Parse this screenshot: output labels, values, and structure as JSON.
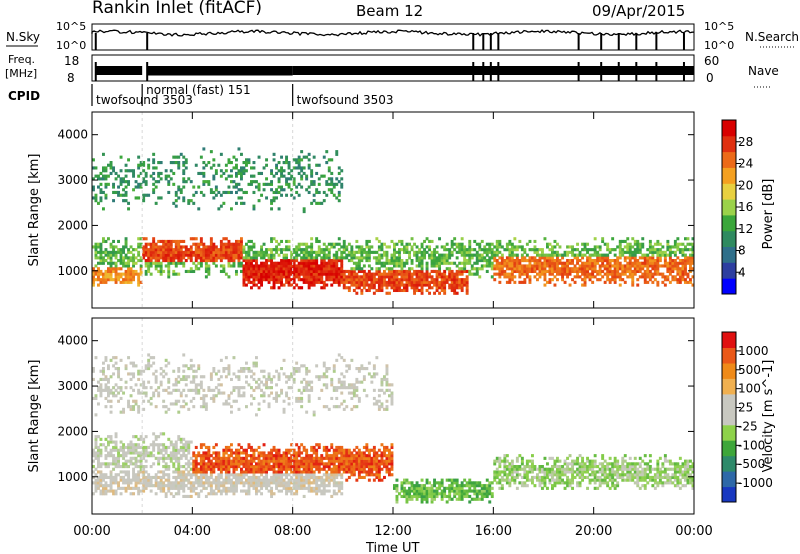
{
  "header": {
    "station": "Rankin Inlet (fitACF)",
    "beam": "Beam 12",
    "date": "09/Apr/2015"
  },
  "status_panels": {
    "nsky_label": "N.Sky",
    "nsky_ticks": [
      "10^5",
      "10^0"
    ],
    "nsearch_label": "N.Search",
    "nsearch_ticks": [
      "10^5",
      "10^0"
    ],
    "freq_label": "Freq.",
    "freq_unit": "[MHz]",
    "freq_ticks": [
      "18",
      "8"
    ],
    "nave_label": "Nave",
    "nave_ticks": [
      "60",
      "0"
    ],
    "cpid_label": "CPID",
    "cpid_segments": [
      {
        "name": "twofsound 3503",
        "start": 0.0,
        "end": 2.0
      },
      {
        "name": "normal (fast) 151",
        "start": 2.0,
        "end": 8.0
      },
      {
        "name": "twofsound 3503",
        "start": 8.0,
        "end": 24.0
      }
    ]
  },
  "axes": {
    "ylabel": "Slant Range [km]",
    "xlabel": "Time UT",
    "y_ticks": [
      "4000",
      "3000",
      "2000",
      "1000"
    ],
    "x_ticks": [
      "00:00",
      "04:00",
      "08:00",
      "12:00",
      "16:00",
      "20:00",
      "00:00"
    ]
  },
  "colorbars": {
    "power": {
      "label": "Power [dB]",
      "ticks": [
        "28",
        "24",
        "20",
        "16",
        "12",
        "8",
        "4"
      ],
      "colors": [
        "#0000ff",
        "#2d3ea0",
        "#2f6f8a",
        "#2f8a60",
        "#3aa63a",
        "#9bd24a",
        "#e8d040",
        "#f4a020",
        "#ec6a18",
        "#e03010",
        "#d80000"
      ]
    },
    "velocity": {
      "label": "Velocity [m s^-1]",
      "ticks": [
        "1000",
        "500",
        "100",
        "25",
        "-25",
        "-100",
        "-500",
        "-1000"
      ],
      "colors": [
        "#1838c0",
        "#2e68a8",
        "#2e8a6a",
        "#3ea63a",
        "#8ed24a",
        "#c8c8c0",
        "#c8c8c0",
        "#f0b050",
        "#ef8a18",
        "#ea5818",
        "#e01010"
      ]
    }
  },
  "chart_data": [
    {
      "type": "heatmap",
      "title": "Power",
      "xlabel": "Time UT",
      "ylabel": "Slant Range [km]",
      "xlim": [
        0,
        24
      ],
      "ylim": [
        180,
        4500
      ],
      "colorbar_label": "Power [dB]",
      "colorbar_range": [
        0,
        30
      ],
      "layers": [
        {
          "t_start": 0.0,
          "t_end": 24.0,
          "range_center": 1300,
          "range_halfwidth": 450,
          "value": 13,
          "density": 0.55
        },
        {
          "t_start": 0.0,
          "t_end": 2.0,
          "range_center": 900,
          "range_halfwidth": 250,
          "value": 22,
          "density": 0.7
        },
        {
          "t_start": 2.0,
          "t_end": 6.0,
          "range_center": 1400,
          "range_halfwidth": 350,
          "value": 26,
          "density": 0.8
        },
        {
          "t_start": 6.0,
          "t_end": 10.0,
          "range_center": 1000,
          "range_halfwidth": 400,
          "value": 28,
          "density": 0.85
        },
        {
          "t_start": 10.0,
          "t_end": 15.0,
          "range_center": 800,
          "range_halfwidth": 350,
          "value": 26,
          "density": 0.75
        },
        {
          "t_start": 16.0,
          "t_end": 24.0,
          "range_center": 1100,
          "range_halfwidth": 450,
          "value": 24,
          "density": 0.7
        },
        {
          "t_start": 0.0,
          "t_end": 10.0,
          "range_center": 3000,
          "range_halfwidth": 700,
          "value": 10,
          "density": 0.25
        }
      ]
    },
    {
      "type": "heatmap",
      "title": "Velocity",
      "xlabel": "Time UT",
      "ylabel": "Slant Range [km]",
      "xlim": [
        0,
        24
      ],
      "ylim": [
        180,
        4500
      ],
      "colorbar_label": "Velocity [m s^-1]",
      "colorbar_range": [
        -1000,
        1000
      ],
      "layers": [
        {
          "t_start": 0.0,
          "t_end": 4.0,
          "range_center": 1500,
          "range_halfwidth": 500,
          "value": 0,
          "density": 0.55
        },
        {
          "t_start": 0.0,
          "t_end": 10.0,
          "range_center": 900,
          "range_halfwidth": 350,
          "value": 150,
          "density": 0.7
        },
        {
          "t_start": 4.0,
          "t_end": 12.0,
          "range_center": 1300,
          "range_halfwidth": 450,
          "value": 800,
          "density": 0.75
        },
        {
          "t_start": 12.0,
          "t_end": 16.0,
          "range_center": 700,
          "range_halfwidth": 300,
          "value": -300,
          "density": 0.7
        },
        {
          "t_start": 16.0,
          "t_end": 24.0,
          "range_center": 1100,
          "range_halfwidth": 400,
          "value": -150,
          "density": 0.65
        },
        {
          "t_start": 0.0,
          "t_end": 12.0,
          "range_center": 3000,
          "range_halfwidth": 700,
          "value": 80,
          "density": 0.25
        }
      ]
    }
  ]
}
